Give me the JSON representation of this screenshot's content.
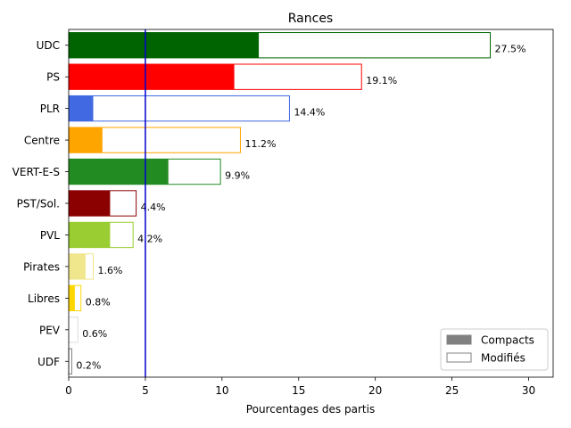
{
  "chart_data": {
    "type": "bar",
    "orientation": "horizontal",
    "title": "Rances",
    "xlabel": "Pourcentages des partis",
    "ylabel": "",
    "xlim": [
      0,
      31.6
    ],
    "x_ticks": [
      0,
      5,
      10,
      15,
      20,
      25,
      30
    ],
    "categories": [
      "UDC",
      "PS",
      "PLR",
      "Centre",
      "VERT-E-S",
      "PST/Sol.",
      "PVL",
      "Pirates",
      "Libres",
      "PEV",
      "UDF"
    ],
    "colors": [
      "#006400",
      "#ff0000",
      "#4169e1",
      "#ffa500",
      "#228b22",
      "#8b0000",
      "#9acd32",
      "#f0e68c",
      "#ffd700",
      "#dddddd",
      "#808080"
    ],
    "series": [
      {
        "name": "Compacts",
        "values": [
          12.4,
          10.8,
          1.6,
          2.2,
          6.5,
          2.7,
          2.7,
          1.1,
          0.4,
          0.0,
          0.0
        ]
      },
      {
        "name": "Modifiés",
        "values": [
          27.5,
          19.1,
          14.4,
          11.2,
          9.9,
          4.4,
          4.2,
          1.6,
          0.8,
          0.6,
          0.2
        ]
      }
    ],
    "data_labels": [
      "27.5%",
      "19.1%",
      "14.4%",
      "11.2%",
      "9.9%",
      "4.4%",
      "4.2%",
      "1.6%",
      "0.8%",
      "0.6%",
      "0.2%"
    ],
    "reference_line": {
      "x": 5,
      "color": "#0000cd"
    },
    "legend": {
      "placement": "lower-right",
      "entries": [
        {
          "label": "Compacts",
          "swatch": "#808080",
          "style": "filled"
        },
        {
          "label": "Modifiés",
          "swatch": "#808080",
          "style": "outline"
        }
      ]
    },
    "grid": false
  }
}
